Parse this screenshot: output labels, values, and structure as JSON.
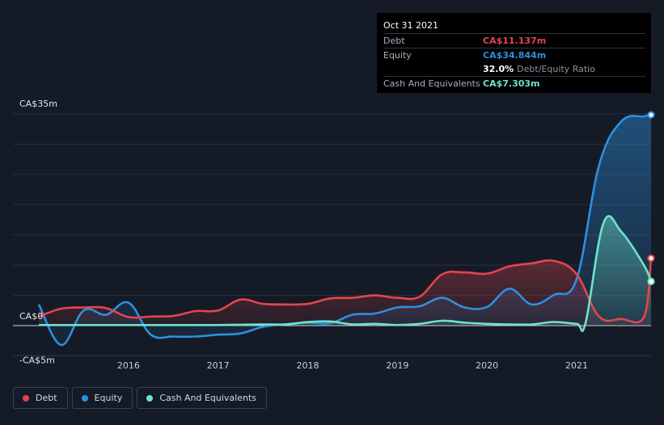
{
  "tooltip": {
    "date": "Oct 31 2021",
    "debt_label": "Debt",
    "debt_value": "CA$11.137m",
    "equity_label": "Equity",
    "equity_value": "CA$34.844m",
    "ratio_value": "32.0%",
    "ratio_label": "Debt/Equity Ratio",
    "cash_label": "Cash And Equivalents",
    "cash_value": "CA$7.303m"
  },
  "colors": {
    "debt": "#e5454d",
    "equity": "#2e8fe0",
    "cash": "#6fe3c9",
    "background": "#151b26"
  },
  "legend": [
    {
      "label": "Debt",
      "color": "#e5454d"
    },
    {
      "label": "Equity",
      "color": "#2e8fe0"
    },
    {
      "label": "Cash And Equivalents",
      "color": "#6fe3c9"
    }
  ],
  "chart_data": {
    "type": "area",
    "title": "",
    "xlabel": "",
    "ylabel": "",
    "ylim": [
      -5,
      35
    ],
    "xlim": [
      2015.0,
      2021.83
    ],
    "y_tick_labels": [
      {
        "value": 35,
        "label": "CA$35m"
      },
      {
        "value": 0,
        "label": "CA$0"
      },
      {
        "value": -5,
        "label": "-CA$5m"
      }
    ],
    "x_ticks": [
      2016,
      2017,
      2018,
      2019,
      2020,
      2021
    ],
    "x_tick_labels": [
      "2016",
      "2017",
      "2018",
      "2019",
      "2020",
      "2021"
    ],
    "series": [
      {
        "name": "Debt",
        "color": "#e5454d",
        "x": [
          2015.0,
          2015.25,
          2015.5,
          2015.75,
          2016.0,
          2016.25,
          2016.5,
          2016.75,
          2017.0,
          2017.25,
          2017.5,
          2017.75,
          2018.0,
          2018.25,
          2018.5,
          2018.75,
          2019.0,
          2019.25,
          2019.5,
          2019.75,
          2020.0,
          2020.25,
          2020.5,
          2020.75,
          2021.0,
          2021.25,
          2021.5,
          2021.75,
          2021.83
        ],
        "values": [
          1.5,
          2.8,
          3.0,
          2.9,
          1.4,
          1.5,
          1.6,
          2.4,
          2.5,
          4.3,
          3.6,
          3.5,
          3.6,
          4.5,
          4.6,
          5.0,
          4.6,
          4.8,
          8.5,
          8.8,
          8.6,
          9.8,
          10.3,
          10.7,
          8.5,
          1.5,
          1.1,
          1.4,
          11.137
        ]
      },
      {
        "name": "Equity",
        "color": "#2e8fe0",
        "x": [
          2015.0,
          2015.25,
          2015.5,
          2015.75,
          2016.0,
          2016.25,
          2016.5,
          2016.75,
          2017.0,
          2017.25,
          2017.5,
          2017.75,
          2018.0,
          2018.25,
          2018.5,
          2018.75,
          2019.0,
          2019.25,
          2019.5,
          2019.75,
          2020.0,
          2020.25,
          2020.5,
          2020.75,
          2021.0,
          2021.25,
          2021.5,
          2021.75,
          2021.83
        ],
        "values": [
          3.5,
          -3.2,
          2.5,
          1.8,
          3.8,
          -1.5,
          -1.8,
          -1.8,
          -1.5,
          -1.3,
          -0.2,
          0.2,
          0.5,
          0.4,
          1.8,
          2.0,
          3.0,
          3.2,
          4.6,
          3.0,
          3.1,
          6.1,
          3.5,
          5.1,
          7.7,
          26.5,
          33.8,
          34.6,
          34.844
        ]
      },
      {
        "name": "Cash And Equivalents",
        "color": "#6fe3c9",
        "x": [
          2015.0,
          2015.25,
          2015.5,
          2015.75,
          2016.0,
          2016.25,
          2016.5,
          2016.75,
          2017.0,
          2017.25,
          2017.5,
          2017.75,
          2018.0,
          2018.25,
          2018.5,
          2018.75,
          2019.0,
          2019.25,
          2019.5,
          2019.75,
          2020.0,
          2020.25,
          2020.5,
          2020.75,
          2021.0,
          2021.1,
          2021.3,
          2021.5,
          2021.75,
          2021.83
        ],
        "values": [
          0.1,
          0.1,
          0.1,
          0.1,
          0.1,
          0.1,
          0.1,
          0.1,
          0.1,
          0.15,
          0.2,
          0.2,
          0.6,
          0.7,
          0.2,
          0.3,
          0.1,
          0.3,
          0.8,
          0.5,
          0.3,
          0.2,
          0.2,
          0.6,
          0.3,
          0.5,
          17.0,
          15.5,
          10.0,
          7.303
        ]
      }
    ]
  }
}
